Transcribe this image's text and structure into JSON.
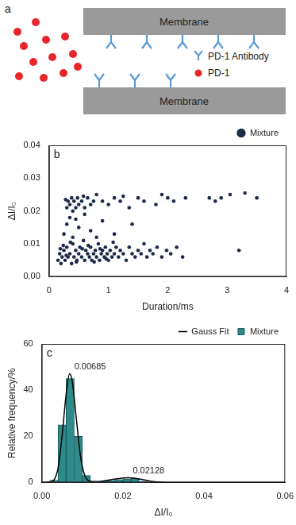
{
  "diagram": {
    "panel_label": "a",
    "membrane_labels": [
      "Membrane",
      "Membrane"
    ],
    "key": [
      {
        "label": "PD-1 Antibody",
        "color": "#5b9bd5"
      },
      {
        "label": "PD-1",
        "color": "#e8262a"
      }
    ]
  },
  "chart_data": [
    {
      "type": "scatter",
      "panel_label": "b",
      "x_label": "Duration/ms",
      "y_label": "ΔI/I₀",
      "xlim": [
        0,
        4
      ],
      "xticks": [
        0,
        1,
        2,
        3,
        4
      ],
      "ylim": [
        0,
        0.04
      ],
      "yticks": [
        {
          "value": 0,
          "label": "0.00"
        },
        {
          "value": 0.01,
          "label": "0.01"
        },
        {
          "value": 0.02,
          "label": "0.02"
        },
        {
          "value": 0.03,
          "label": "0.03"
        },
        {
          "value": 0.04,
          "label": "0.04"
        }
      ],
      "grid": false,
      "legend": "upper right",
      "series": [
        {
          "name": "Mixture",
          "color": "#1c2b4a",
          "marker": "circle",
          "x": [
            0.15,
            0.18,
            0.2,
            0.22,
            0.25,
            0.27,
            0.3,
            0.32,
            0.35,
            0.38,
            0.4,
            0.42,
            0.45,
            0.47,
            0.5,
            0.52,
            0.55,
            0.58,
            0.6,
            0.62,
            0.65,
            0.68,
            0.7,
            0.72,
            0.75,
            0.78,
            0.8,
            0.83,
            0.85,
            0.88,
            0.9,
            0.93,
            0.95,
            0.98,
            1.0,
            1.03,
            1.06,
            1.1,
            1.13,
            1.17,
            1.2,
            1.25,
            1.3,
            1.35,
            1.4,
            1.45,
            1.5,
            1.55,
            1.6,
            1.65,
            1.7,
            1.75,
            1.82,
            1.9,
            1.98,
            2.05,
            2.15,
            2.25,
            0.24,
            0.36,
            0.46,
            0.56,
            0.66,
            0.76,
            0.86,
            0.96,
            1.08,
            0.19,
            0.29,
            3.2,
            0.25,
            0.3,
            0.35,
            0.4,
            0.5,
            0.6,
            0.7,
            0.9,
            1.1,
            1.4,
            0.45,
            0.8,
            0.3,
            0.32,
            0.35,
            0.38,
            0.4,
            0.42,
            0.45,
            0.48,
            0.5,
            0.55,
            0.6,
            0.65,
            0.7,
            0.75,
            0.8,
            0.9,
            1.0,
            1.1,
            1.2,
            1.35,
            1.5,
            1.6,
            1.8,
            1.9,
            2.0,
            2.1,
            2.3,
            2.7,
            2.8,
            2.9,
            3.05,
            3.3,
            3.5,
            0.28,
            0.58,
            1.25
          ],
          "values": [
            0.005,
            0.007,
            0.004,
            0.006,
            0.008,
            0.005,
            0.009,
            0.006,
            0.007,
            0.004,
            0.01,
            0.006,
            0.008,
            0.005,
            0.007,
            0.009,
            0.006,
            0.011,
            0.005,
            0.008,
            0.007,
            0.006,
            0.009,
            0.005,
            0.007,
            0.008,
            0.006,
            0.01,
            0.005,
            0.007,
            0.008,
            0.006,
            0.009,
            0.007,
            0.005,
            0.008,
            0.006,
            0.007,
            0.009,
            0.006,
            0.008,
            0.007,
            0.005,
            0.009,
            0.007,
            0.006,
            0.008,
            0.007,
            0.01,
            0.006,
            0.008,
            0.007,
            0.009,
            0.006,
            0.008,
            0.007,
            0.009,
            0.006,
            0.0095,
            0.0105,
            0.0045,
            0.0085,
            0.0095,
            0.0045,
            0.0085,
            0.0055,
            0.0105,
            0.0085,
            0.0065,
            0.008,
            0.013,
            0.016,
            0.018,
            0.012,
            0.015,
            0.019,
            0.014,
            0.017,
            0.013,
            0.016,
            0.0175,
            0.012,
            0.021,
            0.023,
            0.022,
            0.024,
            0.02,
            0.023,
            0.021,
            0.024,
            0.022,
            0.023,
            0.021,
            0.024,
            0.022,
            0.023,
            0.025,
            0.023,
            0.022,
            0.024,
            0.023,
            0.021,
            0.024,
            0.023,
            0.022,
            0.025,
            0.024,
            0.023,
            0.024,
            0.024,
            0.023,
            0.024,
            0.025,
            0.0255,
            0.024,
            0.0235,
            0.0245,
            0.0245
          ]
        }
      ]
    },
    {
      "type": "bar",
      "panel_label": "c",
      "x_label": "ΔI/I₀",
      "y_label": "Relative frequency/%",
      "xlim": [
        0,
        0.06
      ],
      "xticks": [
        {
          "value": 0,
          "label": "0.00"
        },
        {
          "value": 0.02,
          "label": "0.02"
        },
        {
          "value": 0.04,
          "label": "0.04"
        },
        {
          "value": 0.06,
          "label": "0.06"
        }
      ],
      "ylim": [
        0,
        60
      ],
      "yticks": [
        0,
        20,
        40,
        60
      ],
      "grid": false,
      "legend": "upper right",
      "bins": [
        0.002,
        0.004,
        0.006,
        0.008,
        0.01,
        0.012,
        0.014,
        0.016,
        0.018,
        0.02,
        0.022,
        0.024,
        0.026,
        0.028,
        0.03
      ],
      "series": [
        {
          "name": "Mixture",
          "type": "bar",
          "color": "#2e8b8b",
          "values": [
            1,
            25,
            45,
            20,
            3,
            0.5,
            0.5,
            0.8,
            1.2,
            1.5,
            1.8,
            0.5,
            0,
            0
          ]
        },
        {
          "name": "Gauss Fit",
          "type": "line",
          "color": "#000000",
          "line_style": "solid",
          "x": [
            0,
            0.002,
            0.003,
            0.004,
            0.005,
            0.006,
            0.00685,
            0.0075,
            0.0085,
            0.0095,
            0.0105,
            0.0115,
            0.013,
            0.015,
            0.017,
            0.019,
            0.02128,
            0.023,
            0.025,
            0.027,
            0.029,
            0.031,
            0.04,
            0.06
          ],
          "values": [
            0,
            0.1,
            1,
            6,
            20,
            38,
            47,
            44,
            28,
            12,
            3.5,
            0.8,
            0.3,
            0.6,
            1.2,
            1.7,
            2,
            1.8,
            1.2,
            0.5,
            0.15,
            0,
            0,
            0
          ]
        }
      ],
      "peaks": [
        0.00685,
        0.02128
      ]
    }
  ]
}
